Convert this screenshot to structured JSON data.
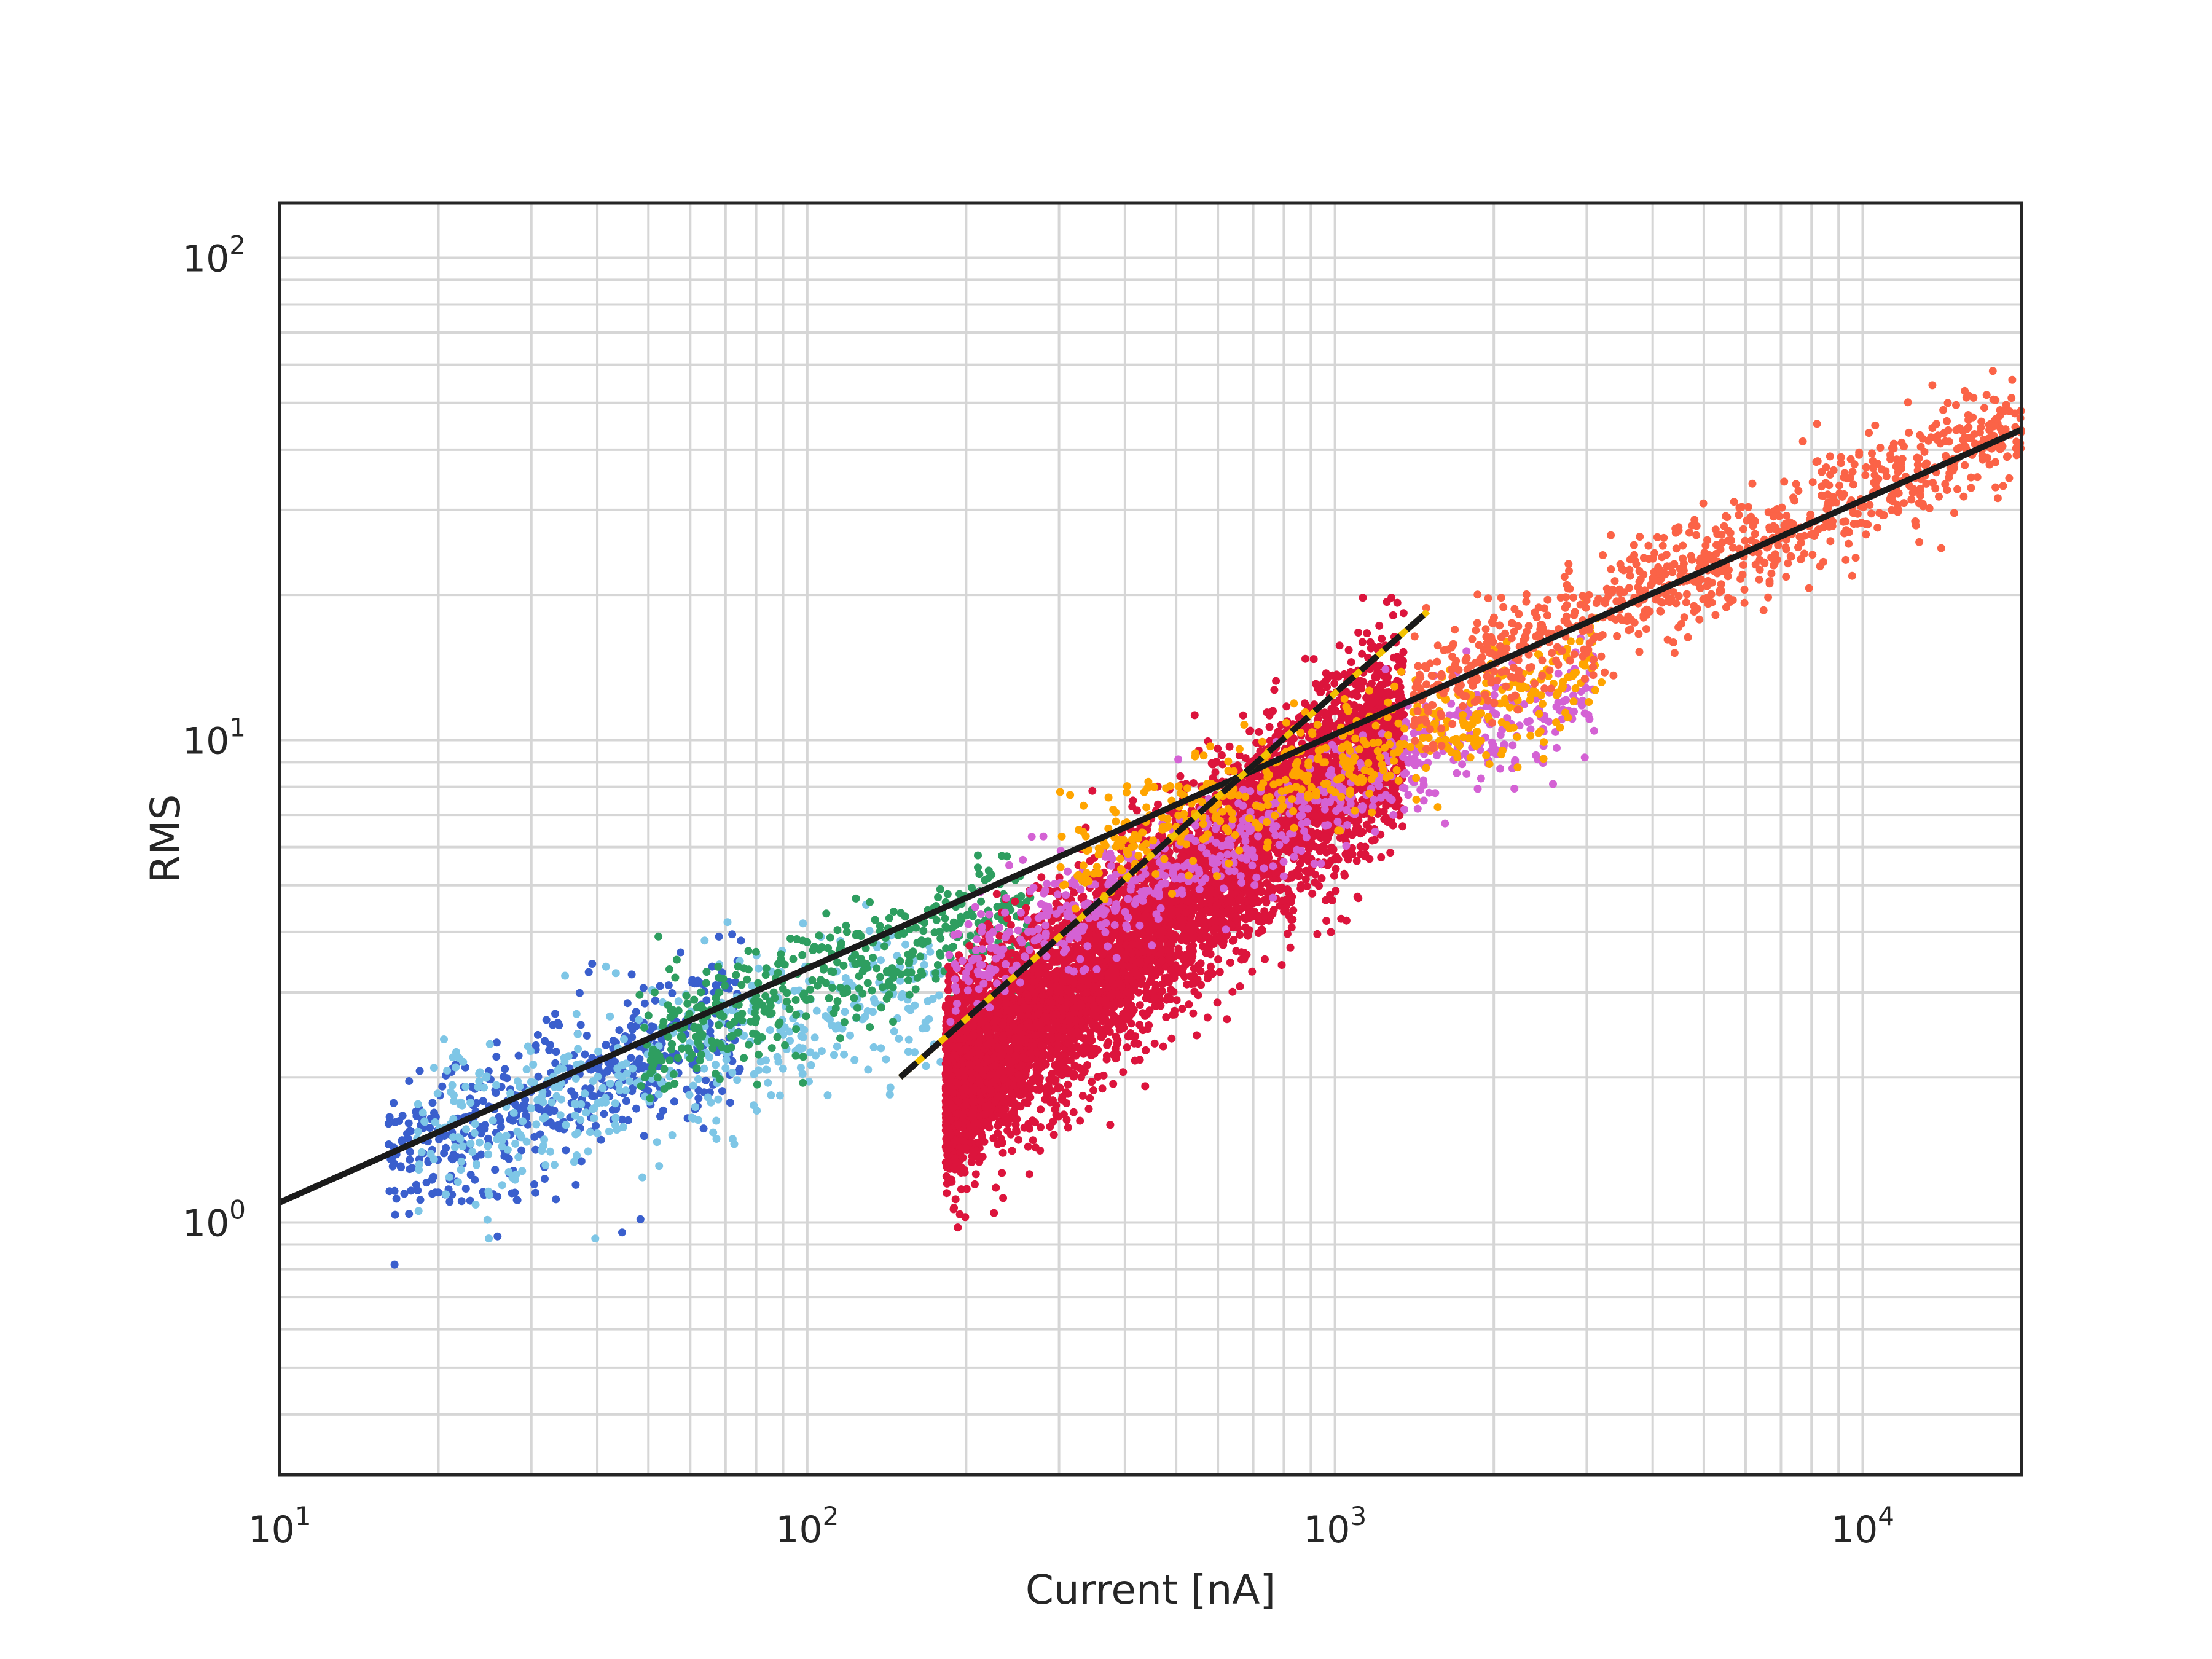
{
  "chart_data": {
    "type": "scatter",
    "title": "",
    "xlabel": "Current [nA]",
    "ylabel": "RMS",
    "x_scale": "log",
    "y_scale": "log",
    "xlim": [
      10,
      20000
    ],
    "ylim": [
      0.3,
      130
    ],
    "grid": true,
    "grid_minor": true,
    "x_ticks": [
      {
        "value": 10,
        "base": "10",
        "exp": "1"
      },
      {
        "value": 100,
        "base": "10",
        "exp": "2"
      },
      {
        "value": 1000,
        "base": "10",
        "exp": "3"
      },
      {
        "value": 10000,
        "base": "10",
        "exp": "4"
      }
    ],
    "y_ticks": [
      {
        "value": 1,
        "base": "10",
        "exp": "0"
      },
      {
        "value": 10,
        "base": "10",
        "exp": "1"
      },
      {
        "value": 100,
        "base": "10",
        "exp": "2"
      }
    ],
    "colors": {
      "frame": "#262626",
      "grid": "#d6d6d6",
      "fit_line": "#1a1a1a",
      "dashed_line": "#1a1a1a",
      "dashed_line_accent": "#f2c200"
    },
    "series": [
      {
        "color": "#3a5fcd",
        "x_range": [
          16,
          75
        ],
        "y_trend": [
          [
            16,
            1.35
          ],
          [
            75,
            2.6
          ]
        ],
        "y_spread": 0.18,
        "points_count": 500
      },
      {
        "color": "#7ec6e6",
        "x_range": [
          18,
          180
        ],
        "y_trend": [
          [
            18,
            1.45
          ],
          [
            180,
            3.2
          ]
        ],
        "y_spread": 0.18,
        "points_count": 450
      },
      {
        "color": "#2e9e60",
        "x_range": [
          48,
          270
        ],
        "y_trend": [
          [
            48,
            2.3
          ],
          [
            270,
            4.6
          ]
        ],
        "y_spread": 0.14,
        "points_count": 450
      },
      {
        "color": "#dc143c",
        "x_range": [
          183,
          1350
        ],
        "y_trend": [
          [
            183,
            1.9
          ],
          [
            1350,
            11
          ]
        ],
        "y_spread": 0.22,
        "points_count": 6500
      },
      {
        "color": "#d462d4",
        "x_range": [
          185,
          3100
        ],
        "y_trend": [
          [
            185,
            3.4
          ],
          [
            3100,
            13
          ]
        ],
        "y_spread": 0.13,
        "points_count": 700
      },
      {
        "color": "#ffa500",
        "x_range": [
          300,
          3200
        ],
        "y_trend": [
          [
            300,
            5.5
          ],
          [
            3200,
            14
          ]
        ],
        "y_spread": 0.12,
        "points_count": 500
      },
      {
        "color": "#fb6347",
        "x_range": [
          1400,
          20000
        ],
        "y_trend": [
          [
            1400,
            12.5
          ],
          [
            20000,
            45
          ]
        ],
        "y_spread": 0.13,
        "points_count": 900
      }
    ],
    "fit_line": {
      "x": [
        10,
        20000
      ],
      "y": [
        1.1,
        44
      ]
    },
    "dashed_line": {
      "x": [
        150,
        1500
      ],
      "y": [
        2.0,
        18.5
      ]
    }
  }
}
